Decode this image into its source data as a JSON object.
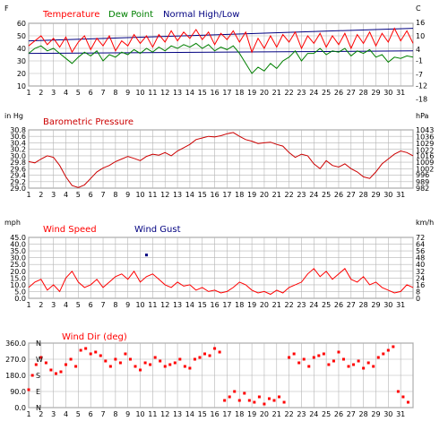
{
  "colors": {
    "temperature": "#ff0000",
    "dew_point": "#008000",
    "normal": "#000080",
    "pressure": "#cc0000",
    "wind_speed": "#ff0000",
    "wind_gust": "#000080",
    "wind_dir": "#ff0000",
    "grid": "#b4b4b4",
    "plot_bg": "#ffffff"
  },
  "chart_data": [
    {
      "type": "line",
      "left_unit": "F",
      "right_unit": "C",
      "legend": [
        {
          "name": "Temperature",
          "color": "#ff0000"
        },
        {
          "name": "Dew Point",
          "color": "#008000"
        },
        {
          "name": "Normal High/Low",
          "color": "#000080"
        }
      ],
      "ylim": [
        10,
        60
      ],
      "yticks": [
        "60",
        "50",
        "40",
        "30",
        "20",
        "10"
      ],
      "right_ticks": [
        "16",
        "10",
        "4",
        "-1",
        "-7",
        "-12",
        "-18"
      ],
      "right_ticks_f": [
        60.8,
        50,
        39.2,
        30.2,
        19.4,
        10.4,
        -0.4
      ],
      "xlim": [
        1,
        32
      ],
      "days": [
        "1",
        "2",
        "3",
        "4",
        "5",
        "6",
        "7",
        "8",
        "9",
        "10",
        "11",
        "12",
        "13",
        "14",
        "15",
        "16",
        "17",
        "18",
        "19",
        "20",
        "21",
        "22",
        "23",
        "24",
        "25",
        "26",
        "27",
        "28",
        "29",
        "30",
        "31"
      ],
      "series": [
        {
          "name": "Temperature",
          "color": "#ff0000",
          "x": [
            1,
            1.5,
            2,
            2.5,
            3,
            3.5,
            4,
            4.5,
            5,
            5.5,
            6,
            6.5,
            7,
            7.5,
            8,
            8.5,
            9,
            9.5,
            10,
            10.5,
            11,
            11.5,
            12,
            12.5,
            13,
            13.5,
            14,
            14.5,
            15,
            15.5,
            16,
            16.5,
            17,
            17.5,
            18,
            18.5,
            19,
            19.5,
            20,
            20.5,
            21,
            21.5,
            22,
            22.5,
            23,
            23.5,
            24,
            24.5,
            25,
            25.5,
            26,
            26.5,
            27,
            27.5,
            28,
            28.5,
            29,
            29.5,
            30,
            30.5,
            31,
            31.5,
            32
          ],
          "y": [
            42,
            46,
            50,
            43,
            48,
            41,
            49,
            37,
            45,
            50,
            39,
            48,
            42,
            50,
            38,
            46,
            42,
            51,
            44,
            50,
            41,
            51,
            45,
            54,
            46,
            53,
            48,
            55,
            47,
            53,
            43,
            52,
            47,
            54,
            45,
            53,
            37,
            48,
            40,
            50,
            41,
            51,
            45,
            53,
            40,
            50,
            44,
            52,
            41,
            50,
            43,
            52,
            40,
            51,
            44,
            53,
            42,
            52,
            45,
            56,
            46,
            54,
            44
          ]
        },
        {
          "name": "Dew Point",
          "color": "#008000",
          "x": [
            1,
            1.5,
            2,
            2.5,
            3,
            3.5,
            4,
            4.5,
            5,
            5.5,
            6,
            6.5,
            7,
            7.5,
            8,
            8.5,
            9,
            9.5,
            10,
            10.5,
            11,
            11.5,
            12,
            12.5,
            13,
            13.5,
            14,
            14.5,
            15,
            15.5,
            16,
            16.5,
            17,
            17.5,
            18,
            18.5,
            19,
            19.5,
            20,
            20.5,
            21,
            21.5,
            22,
            22.5,
            23,
            23.5,
            24,
            24.5,
            25,
            25.5,
            26,
            26.5,
            27,
            27.5,
            28,
            28.5,
            29,
            29.5,
            30,
            30.5,
            31,
            31.5,
            32
          ],
          "y": [
            36,
            40,
            42,
            38,
            40,
            36,
            32,
            28,
            33,
            37,
            34,
            38,
            30,
            35,
            33,
            37,
            35,
            39,
            36,
            40,
            37,
            41,
            38,
            42,
            40,
            43,
            41,
            44,
            40,
            43,
            38,
            41,
            39,
            42,
            36,
            28,
            20,
            25,
            22,
            28,
            24,
            30,
            33,
            38,
            30,
            36,
            36,
            40,
            35,
            38,
            37,
            40,
            34,
            38,
            36,
            39,
            33,
            35,
            29,
            33,
            32,
            34,
            33
          ]
        },
        {
          "name": "Normal High",
          "color": "#000080",
          "x": [
            1,
            32
          ],
          "y": [
            46,
            56
          ]
        },
        {
          "name": "Normal Low",
          "color": "#000080",
          "x": [
            1,
            32
          ],
          "y": [
            36,
            38
          ]
        }
      ]
    },
    {
      "type": "line",
      "title": "Barometric Pressure",
      "left_unit": "in Hg",
      "right_unit": "hPa",
      "ylim": [
        29.0,
        30.8
      ],
      "yticks": [
        "30.8",
        "30.6",
        "30.4",
        "30.2",
        "30.0",
        "29.8",
        "29.6",
        "29.4",
        "29.2",
        "29.0"
      ],
      "right_ticks": [
        "1043",
        "1036",
        "1029",
        "1022",
        "1016",
        "1009",
        "1002",
        "996",
        "989",
        "982"
      ],
      "right_ticks_inhg": [
        30.8,
        30.59,
        30.39,
        30.18,
        30.0,
        29.8,
        29.59,
        29.41,
        29.2,
        29.0
      ],
      "xlim": [
        1,
        32
      ],
      "series": [
        {
          "name": "Barometric Pressure",
          "color": "#cc0000",
          "x": [
            1,
            1.5,
            2,
            2.5,
            3,
            3.5,
            4,
            4.5,
            5,
            5.5,
            6,
            6.5,
            7,
            7.5,
            8,
            8.5,
            9,
            9.5,
            10,
            10.5,
            11,
            11.5,
            12,
            12.5,
            13,
            13.5,
            14,
            14.5,
            15,
            15.5,
            16,
            16.5,
            17,
            17.5,
            18,
            18.5,
            19,
            19.5,
            20,
            20.5,
            21,
            21.5,
            22,
            22.5,
            23,
            23.5,
            24,
            24.5,
            25,
            25.5,
            26,
            26.5,
            27,
            27.5,
            28,
            28.5,
            29,
            29.5,
            30,
            30.5,
            31,
            31.5,
            32
          ],
          "y": [
            29.82,
            29.78,
            29.9,
            30.0,
            29.95,
            29.7,
            29.35,
            29.08,
            29.02,
            29.1,
            29.3,
            29.5,
            29.62,
            29.7,
            29.82,
            29.9,
            29.98,
            29.92,
            29.85,
            29.98,
            30.05,
            30.02,
            30.1,
            30.0,
            30.15,
            30.25,
            30.35,
            30.5,
            30.55,
            30.6,
            30.58,
            30.62,
            30.68,
            30.72,
            30.6,
            30.5,
            30.45,
            30.38,
            30.4,
            30.42,
            30.35,
            30.3,
            30.1,
            29.95,
            30.05,
            30.0,
            29.75,
            29.6,
            29.85,
            29.7,
            29.65,
            29.75,
            29.6,
            29.5,
            29.35,
            29.3,
            29.5,
            29.75,
            29.9,
            30.05,
            30.15,
            30.1,
            30.0
          ]
        }
      ]
    },
    {
      "type": "line",
      "left_unit": "mph",
      "right_unit": "km/h",
      "legend": [
        {
          "name": "Wind Speed",
          "color": "#ff0000"
        },
        {
          "name": "Wind Gust",
          "color": "#000080"
        }
      ],
      "ylim": [
        0,
        45
      ],
      "yticks": [
        "45.0",
        "40.0",
        "35.0",
        "30.0",
        "25.0",
        "20.0",
        "15.0",
        "10.0",
        "5.0",
        "0.0"
      ],
      "right_ticks": [
        "72",
        "64",
        "56",
        "48",
        "40",
        "32",
        "24",
        "16",
        "8",
        "0"
      ],
      "xlim": [
        1,
        32
      ],
      "series": [
        {
          "name": "Wind Speed",
          "color": "#ff0000",
          "x": [
            1,
            1.5,
            2,
            2.5,
            3,
            3.5,
            4,
            4.5,
            5,
            5.5,
            6,
            6.5,
            7,
            7.5,
            8,
            8.5,
            9,
            9.5,
            10,
            10.5,
            11,
            11.5,
            12,
            12.5,
            13,
            13.5,
            14,
            14.5,
            15,
            15.5,
            16,
            16.5,
            17,
            17.5,
            18,
            18.5,
            19,
            19.5,
            20,
            20.5,
            21,
            21.5,
            22,
            22.5,
            23,
            23.5,
            24,
            24.5,
            25,
            25.5,
            26,
            26.5,
            27,
            27.5,
            28,
            28.5,
            29,
            29.5,
            30,
            30.5,
            31,
            31.5,
            32
          ],
          "y": [
            8,
            12,
            14,
            6,
            10,
            5,
            15,
            20,
            12,
            8,
            10,
            14,
            8,
            12,
            16,
            18,
            14,
            20,
            12,
            16,
            18,
            14,
            10,
            8,
            12,
            9,
            10,
            6,
            8,
            5,
            6,
            4,
            5,
            8,
            12,
            10,
            6,
            4,
            5,
            3,
            6,
            4,
            8,
            10,
            12,
            18,
            22,
            16,
            20,
            14,
            18,
            22,
            14,
            12,
            16,
            10,
            12,
            8,
            6,
            4,
            5,
            10,
            8
          ]
        },
        {
          "name": "Wind Gust",
          "color": "#000080",
          "points": [
            [
              10.5,
              32
            ]
          ]
        }
      ]
    },
    {
      "type": "scatter",
      "title": "Wind Dir (deg)",
      "ylim": [
        0,
        360
      ],
      "yticks": [
        "360.0",
        "270.0",
        "180.0",
        "90.0",
        "0.0"
      ],
      "compass": [
        "N",
        "W",
        "S",
        "E",
        "N"
      ],
      "xlim": [
        1,
        32
      ],
      "series": [
        {
          "name": "Wind Dir",
          "color": "#ff0000",
          "x": [
            1,
            1.3,
            1.6,
            2,
            2.4,
            2.8,
            3.2,
            3.6,
            4,
            4.4,
            4.8,
            5.2,
            5.6,
            6,
            6.4,
            6.8,
            7.2,
            7.6,
            8,
            8.4,
            8.8,
            9.2,
            9.6,
            10,
            10.4,
            10.8,
            11.2,
            11.6,
            12,
            12.4,
            12.8,
            13.2,
            13.6,
            14,
            14.4,
            14.8,
            15.2,
            15.6,
            16,
            16.4,
            16.8,
            17.2,
            17.6,
            18,
            18.4,
            18.8,
            19.2,
            19.6,
            20,
            20.4,
            20.8,
            21.2,
            21.6,
            22,
            22.4,
            22.8,
            23.2,
            23.6,
            24,
            24.4,
            24.8,
            25.2,
            25.6,
            26,
            26.4,
            26.8,
            27.2,
            27.6,
            28,
            28.4,
            28.8,
            29.2,
            29.6,
            30,
            30.4,
            30.8,
            31.2,
            31.6
          ],
          "y": [
            100,
            180,
            240,
            280,
            250,
            210,
            190,
            200,
            240,
            270,
            230,
            320,
            330,
            300,
            310,
            290,
            260,
            230,
            270,
            250,
            300,
            270,
            230,
            210,
            250,
            240,
            280,
            260,
            230,
            240,
            250,
            270,
            230,
            220,
            270,
            280,
            300,
            290,
            330,
            310,
            40,
            60,
            90,
            40,
            80,
            40,
            30,
            60,
            20,
            50,
            40,
            60,
            30,
            280,
            300,
            250,
            270,
            230,
            280,
            290,
            300,
            240,
            260,
            310,
            270,
            230,
            240,
            260,
            220,
            250,
            230,
            280,
            300,
            320,
            340,
            90,
            60,
            30
          ]
        }
      ]
    }
  ],
  "panel2_title": "Barometric Pressure",
  "panel4_title": "Wind Dir (deg)"
}
